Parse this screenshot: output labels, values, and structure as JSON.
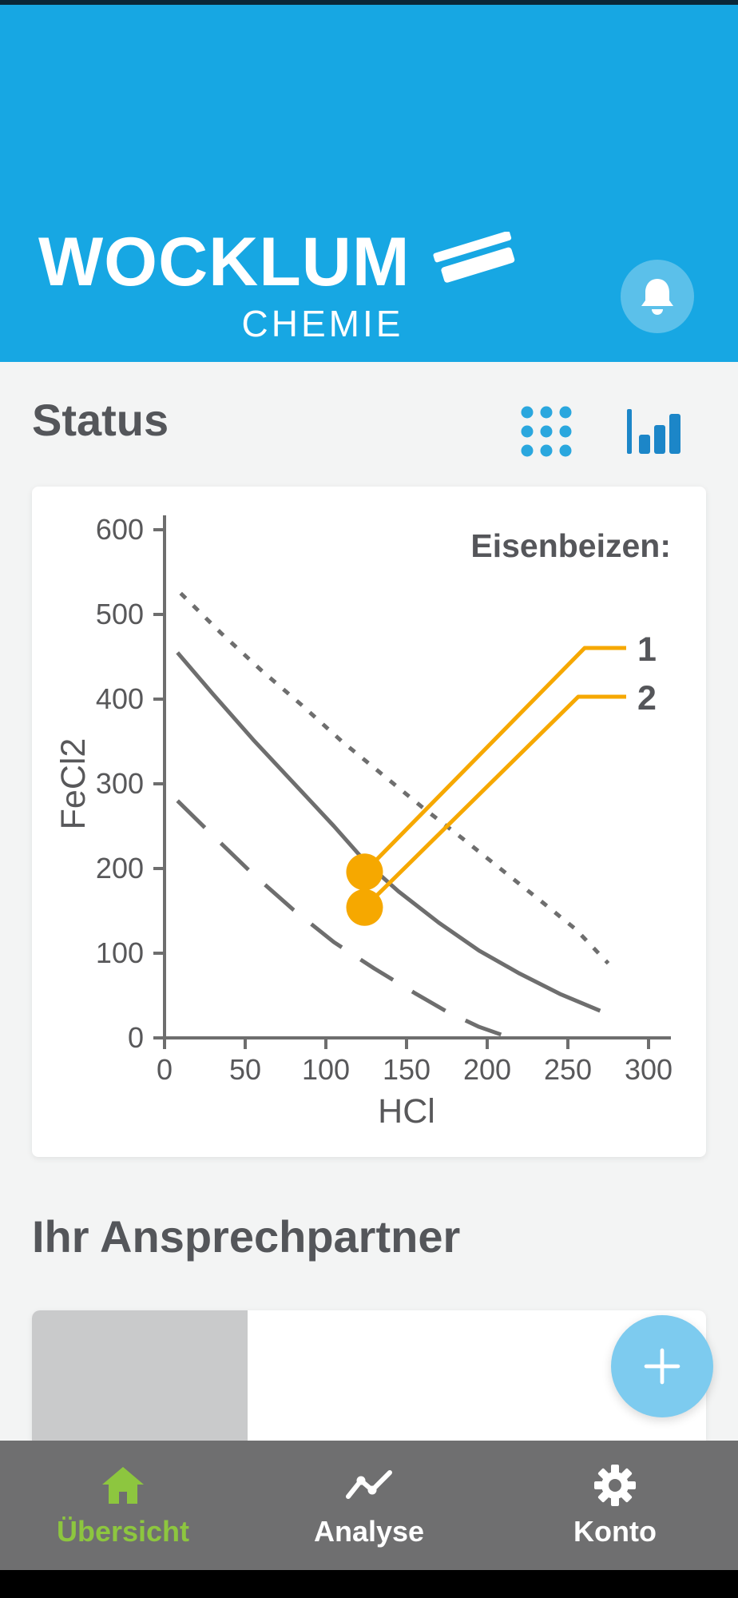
{
  "header": {
    "brand": "WOCKLUM",
    "brand_sub": "CHEMIE",
    "bell_icon": "bell-icon"
  },
  "status": {
    "title": "Status",
    "view_toggles": [
      {
        "icon": "dot-grid-icon"
      },
      {
        "icon": "bar-chart-icon"
      }
    ]
  },
  "chart_data": {
    "type": "line",
    "title": "",
    "xlabel": "HCl",
    "ylabel": "FeCl2",
    "xlim": [
      0,
      300
    ],
    "ylim": [
      0,
      600
    ],
    "xticks": [
      0,
      50,
      100,
      150,
      200,
      250,
      300
    ],
    "yticks": [
      0,
      100,
      200,
      300,
      400,
      500,
      600
    ],
    "grid": false,
    "legend_title": "Eisenbeizen:",
    "legend_position": "top-right",
    "axis_color": "#6E6E6E",
    "series": [
      {
        "name": "curve-dotted-upper",
        "style": "dotted",
        "color": "#6E6E6E",
        "points": [
          [
            10,
            525
          ],
          [
            35,
            478
          ],
          [
            60,
            434
          ],
          [
            85,
            393
          ],
          [
            110,
            350
          ],
          [
            135,
            311
          ],
          [
            160,
            272
          ],
          [
            185,
            235
          ],
          [
            210,
            197
          ],
          [
            235,
            159
          ],
          [
            255,
            128
          ],
          [
            275,
            88
          ]
        ]
      },
      {
        "name": "curve-solid-middle",
        "style": "solid",
        "color": "#6E6E6E",
        "points": [
          [
            8,
            455
          ],
          [
            30,
            406
          ],
          [
            55,
            352
          ],
          [
            80,
            301
          ],
          [
            105,
            250
          ],
          [
            125,
            207
          ],
          [
            145,
            173
          ],
          [
            170,
            136
          ],
          [
            195,
            103
          ],
          [
            220,
            76
          ],
          [
            245,
            52
          ],
          [
            270,
            32
          ]
        ]
      },
      {
        "name": "curve-dashed-lower",
        "style": "dashed",
        "color": "#6E6E6E",
        "points": [
          [
            8,
            280
          ],
          [
            30,
            239
          ],
          [
            55,
            193
          ],
          [
            80,
            151
          ],
          [
            105,
            113
          ],
          [
            130,
            82
          ],
          [
            155,
            53
          ],
          [
            175,
            31
          ],
          [
            195,
            13
          ],
          [
            210,
            3
          ]
        ]
      }
    ],
    "markers": [
      {
        "label": "1",
        "x": 124,
        "y": 196,
        "color": "#F6A800"
      },
      {
        "label": "2",
        "x": 124,
        "y": 154,
        "color": "#F6A800"
      }
    ]
  },
  "contact": {
    "title": "Ihr Ansprechpartner"
  },
  "fab": {
    "icon": "plus-icon"
  },
  "nav": {
    "items": [
      {
        "label": "Übersicht",
        "icon": "home-icon",
        "active": true
      },
      {
        "label": "Analyse",
        "icon": "line-chart-icon",
        "active": false
      },
      {
        "label": "Konto",
        "icon": "gear-icon",
        "active": false
      }
    ]
  },
  "colors": {
    "header_blue": "#17A7E3",
    "bell_circle_blue": "#5BC0EA",
    "dot_grid_blue": "#2AA7DE",
    "chart_icon_blue": "#1C86C8",
    "curve_gray": "#6E6E6E",
    "marker_orange": "#F6A800",
    "text_dark": "#54565A",
    "nav_bg_gray": "#6F6F70",
    "nav_active_green": "#8DC63F",
    "fab_blue": "#7DCBEF",
    "page_bg": "#F3F4F4",
    "photo_placeholder_gray": "#C9CACB"
  }
}
